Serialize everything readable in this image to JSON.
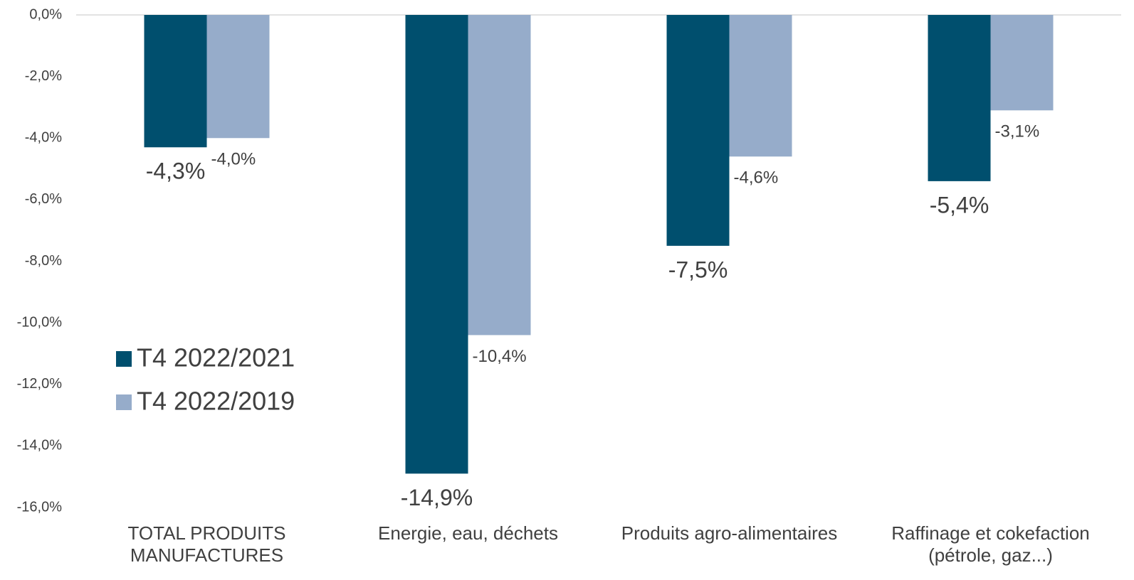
{
  "chart_data": {
    "type": "bar",
    "categories": [
      "TOTAL PRODUITS MANUFACTURES",
      "Energie, eau, déchets",
      "Produits agro-alimentaires",
      "Raffinage et cokefaction (pétrole, gaz...)"
    ],
    "series": [
      {
        "name": "T4 2022/2021",
        "color": "#004f6e",
        "values": [
          -4.3,
          -14.9,
          -7.5,
          -5.4
        ],
        "value_labels": [
          "-4,3%",
          "-14,9%",
          "-7,5%",
          "-5,4%"
        ]
      },
      {
        "name": "T4 2022/2019",
        "color": "#96acca",
        "values": [
          -4.0,
          -10.4,
          -4.6,
          -3.1
        ],
        "value_labels": [
          "-4,0%",
          "-10,4%",
          "-4,6%",
          "-3,1%"
        ]
      }
    ],
    "ylim": [
      -16,
      0
    ],
    "yticks": [
      {
        "value": 0,
        "label": "0,0%"
      },
      {
        "value": -2,
        "label": "-2,0%"
      },
      {
        "value": -4,
        "label": "-4,0%"
      },
      {
        "value": -6,
        "label": "-6,0%"
      },
      {
        "value": -8,
        "label": "-8,0%"
      },
      {
        "value": -10,
        "label": "-10,0%"
      },
      {
        "value": -12,
        "label": "-12,0%"
      },
      {
        "value": -14,
        "label": "-14,0%"
      },
      {
        "value": -16,
        "label": "-16,0%"
      }
    ],
    "grid": false,
    "legend": "left"
  }
}
